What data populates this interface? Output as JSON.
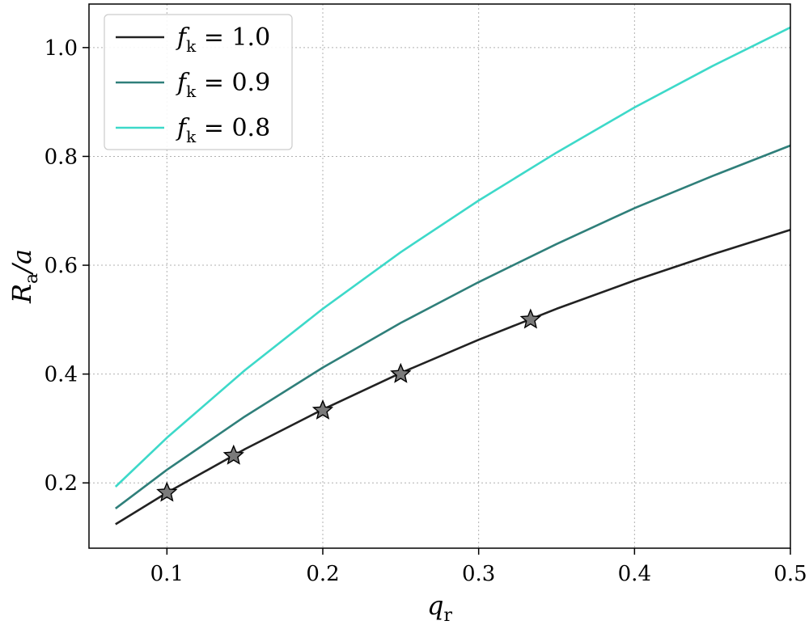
{
  "chart_data": {
    "type": "line",
    "xlabel": "q",
    "xlabel_sub": "r",
    "ylabel": "R",
    "ylabel_sub": "a",
    "ylabel_suffix": "/a",
    "xlim": [
      0.05,
      0.5
    ],
    "ylim": [
      0.08,
      1.08
    ],
    "x_ticks": [
      0.1,
      0.2,
      0.3,
      0.4,
      0.5
    ],
    "x_tick_labels": [
      "0.1",
      "0.2",
      "0.3",
      "0.4",
      "0.5"
    ],
    "y_ticks": [
      0.2,
      0.4,
      0.6,
      0.8,
      1.0
    ],
    "y_tick_labels": [
      "0.2",
      "0.4",
      "0.6",
      "0.8",
      "1.0"
    ],
    "grid": true,
    "legend_placement": "top-left",
    "series": [
      {
        "name": "f_k = 1.0",
        "label_var": "f",
        "label_sub": "k",
        "label_rest": " = 1.0",
        "color": "#222222",
        "x": [
          0.067,
          0.1,
          0.15,
          0.2,
          0.25,
          0.3,
          0.35,
          0.4,
          0.45,
          0.5
        ],
        "y": [
          0.124,
          0.182,
          0.262,
          0.335,
          0.402,
          0.463,
          0.52,
          0.572,
          0.62,
          0.665
        ]
      },
      {
        "name": "f_k = 0.9",
        "label_var": "f",
        "label_sub": "k",
        "label_rest": " = 0.9",
        "color": "#2f7f7a",
        "x": [
          0.067,
          0.1,
          0.15,
          0.2,
          0.25,
          0.3,
          0.35,
          0.4,
          0.45,
          0.5
        ],
        "y": [
          0.153,
          0.224,
          0.322,
          0.412,
          0.494,
          0.569,
          0.639,
          0.705,
          0.764,
          0.82
        ]
      },
      {
        "name": "f_k = 0.8",
        "label_var": "f",
        "label_sub": "k",
        "label_rest": " = 0.8",
        "color": "#3dd9c9",
        "x": [
          0.067,
          0.1,
          0.15,
          0.2,
          0.25,
          0.3,
          0.35,
          0.4,
          0.45,
          0.5
        ],
        "y": [
          0.193,
          0.283,
          0.407,
          0.52,
          0.624,
          0.719,
          0.807,
          0.89,
          0.966,
          1.037
        ]
      }
    ],
    "markers": {
      "shape": "star",
      "fill": "#7a7a7a",
      "stroke": "#000000",
      "x": [
        0.1,
        0.1428,
        0.2,
        0.25,
        0.3333
      ],
      "y": [
        0.182,
        0.25,
        0.333,
        0.4,
        0.5
      ]
    }
  }
}
